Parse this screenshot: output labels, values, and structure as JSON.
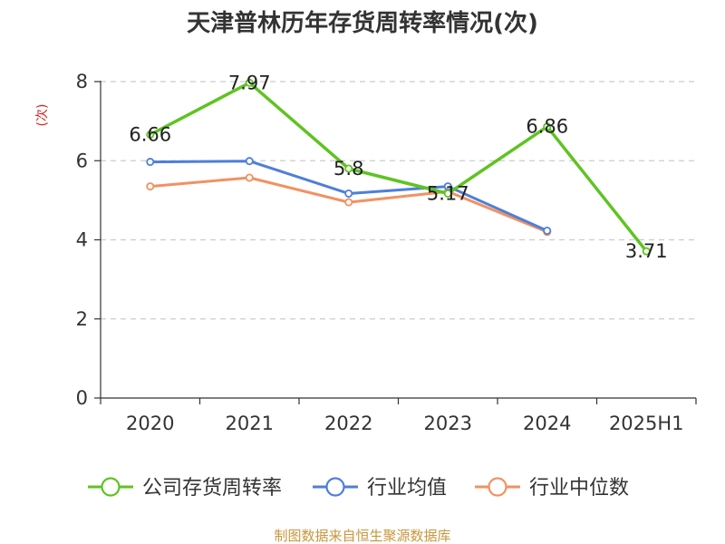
{
  "chart_data": {
    "type": "line",
    "title": "天津普林历年存货周转率情况(次)",
    "ylabel": "(次)",
    "categories": [
      "2020",
      "2021",
      "2022",
      "2023",
      "2024",
      "2025H1"
    ],
    "ylim": [
      0,
      8
    ],
    "yticks": [
      0,
      2,
      4,
      6,
      8
    ],
    "grid": true,
    "legend_position": "bottom",
    "series": [
      {
        "name": "公司存货周转率",
        "color": "#5ec421",
        "values": [
          6.66,
          7.97,
          5.8,
          5.17,
          6.86,
          3.71
        ],
        "labels": [
          "6.66",
          "7.97",
          "5.8",
          "5.17",
          "6.86",
          "3.71"
        ]
      },
      {
        "name": "行业均值",
        "color": "#4e7fd9",
        "values": [
          5.97,
          5.99,
          5.17,
          5.35,
          4.23,
          null
        ]
      },
      {
        "name": "行业中位数",
        "color": "#f29162",
        "values": [
          5.35,
          5.57,
          4.95,
          5.22,
          4.2,
          null
        ]
      }
    ]
  },
  "source": "制图数据来自恒生聚源数据库"
}
